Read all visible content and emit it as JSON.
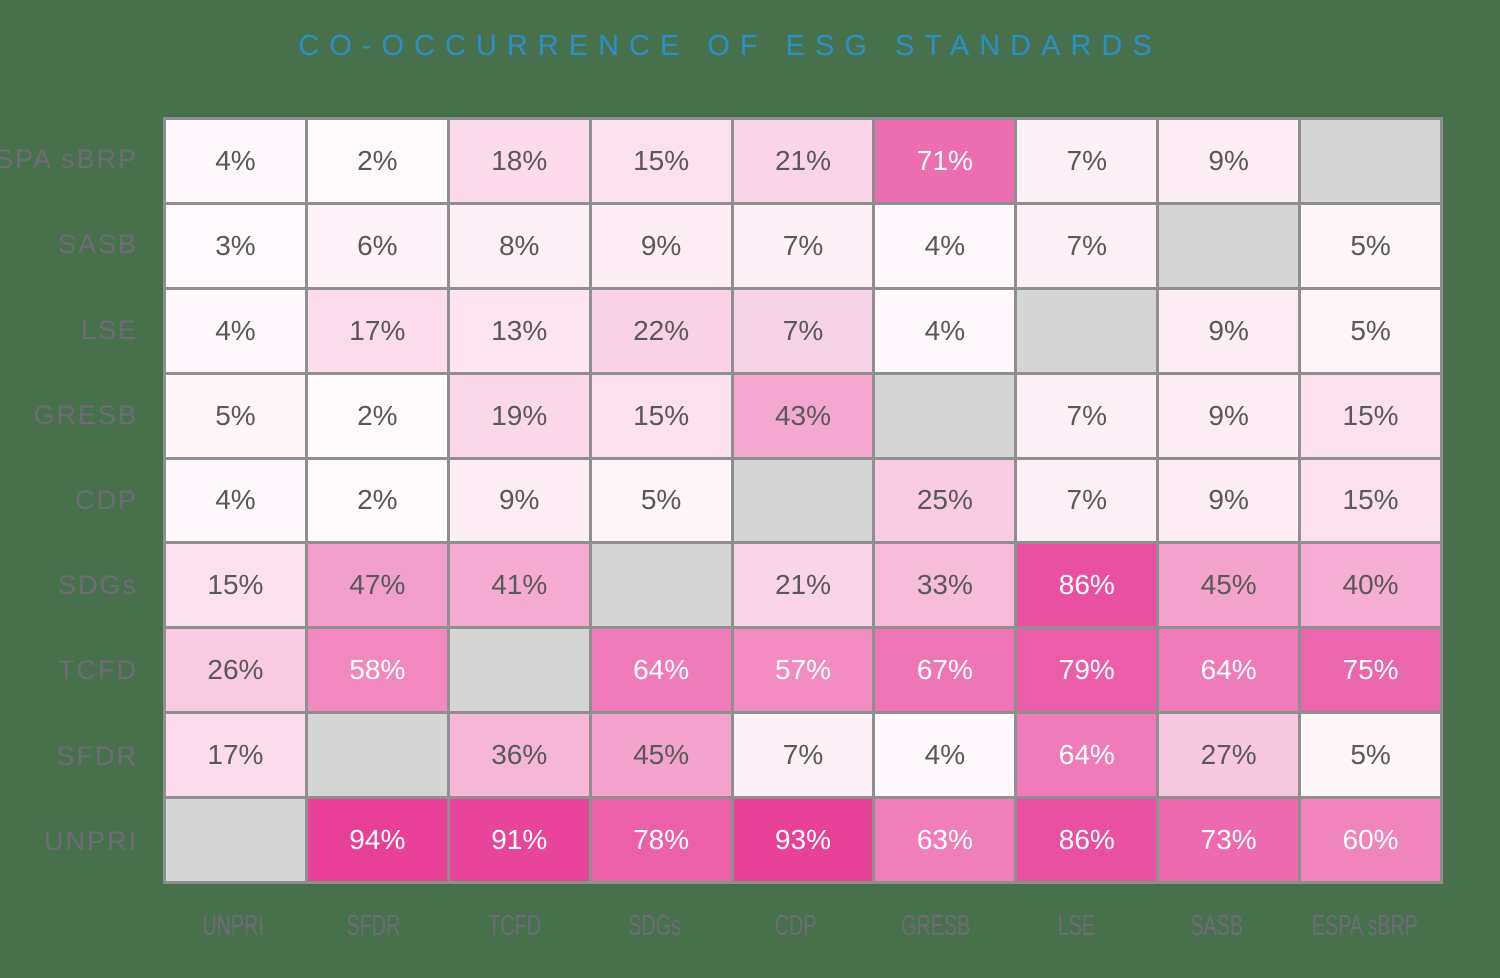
{
  "title": "CO-OCCURRENCE OF ESG STANDARDS",
  "colors": {
    "background": "#47714d",
    "title": "#2a90c8",
    "axis_labels": "#716a79",
    "grid_lines": "#8f8f8f",
    "diagonal_cell": "#d5d5d5",
    "scale_low": "#ffffff",
    "scale_high": "#e6338f",
    "cell_text_dark": "#595959",
    "cell_text_light": "#ffffff"
  },
  "chart_data": {
    "type": "heatmap",
    "title": "CO-OCCURRENCE OF ESG STANDARDS",
    "x_categories": [
      "UNPRI",
      "SFDR",
      "TCFD",
      "SDGs",
      "CDP",
      "GRESB",
      "LSE",
      "SASB",
      "ESPA sBRP"
    ],
    "y_categories": [
      "ESPA sBRP",
      "SASB",
      "LSE",
      "GRESB",
      "CDP",
      "SDGs",
      "TCFD",
      "SFDR",
      "UNPRI"
    ],
    "values_unit": "%",
    "values": [
      [
        4,
        2,
        18,
        15,
        21,
        71,
        7,
        9,
        null
      ],
      [
        3,
        6,
        8,
        9,
        7,
        4,
        7,
        null,
        5
      ],
      [
        4,
        17,
        13,
        22,
        7,
        4,
        null,
        9,
        5
      ],
      [
        5,
        2,
        19,
        15,
        43,
        null,
        7,
        9,
        15
      ],
      [
        4,
        2,
        9,
        5,
        null,
        25,
        7,
        9,
        15
      ],
      [
        15,
        47,
        41,
        null,
        21,
        33,
        86,
        45,
        40
      ],
      [
        26,
        58,
        null,
        64,
        57,
        67,
        79,
        64,
        75
      ],
      [
        17,
        null,
        36,
        45,
        7,
        4,
        64,
        27,
        5
      ],
      [
        null,
        94,
        91,
        78,
        93,
        63,
        86,
        73,
        60
      ]
    ],
    "diagonal_note": "diagonal cells (same standard vs itself) are blank gray",
    "colorscale": {
      "low": "#ffffff",
      "high": "#e6338f",
      "text_switch_threshold": 50
    },
    "color_overrides": [
      {
        "row_label": "LSE",
        "col_label": "CDP",
        "color": "#f6d4e8"
      }
    ],
    "legend": "none",
    "grid": true
  }
}
